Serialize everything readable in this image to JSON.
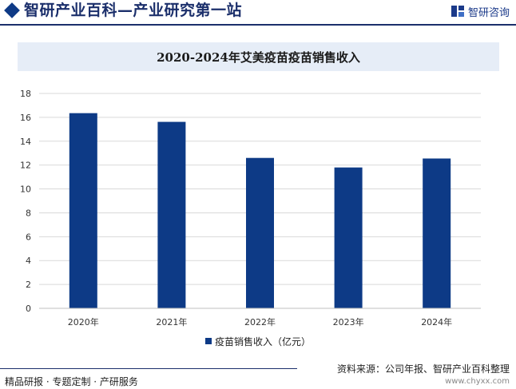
{
  "header": {
    "title": "智研产业百科—产业研究第一站",
    "logo_text": "智研咨询"
  },
  "chart_data": {
    "type": "bar",
    "title": "2020-2024年艾美疫苗疫苗销售收入",
    "categories": [
      "2020年",
      "2021年",
      "2022年",
      "2023年",
      "2024年"
    ],
    "series": [
      {
        "name": "疫苗销售收入（亿元）",
        "values": [
          16.35,
          15.62,
          12.6,
          11.8,
          12.55
        ],
        "color": "#0d3a86"
      }
    ],
    "ylim": [
      0,
      18
    ],
    "yticks": [
      "0",
      "2",
      "4",
      "6",
      "8",
      "10",
      "12",
      "14",
      "16",
      "18"
    ],
    "grid": true,
    "legend_position": "bottom"
  },
  "footer": {
    "left": "精品研报 · 专题定制 · 产研服务",
    "source": "资料来源：公司年报、智研产业百科整理",
    "url": "www.chyxx.com"
  }
}
